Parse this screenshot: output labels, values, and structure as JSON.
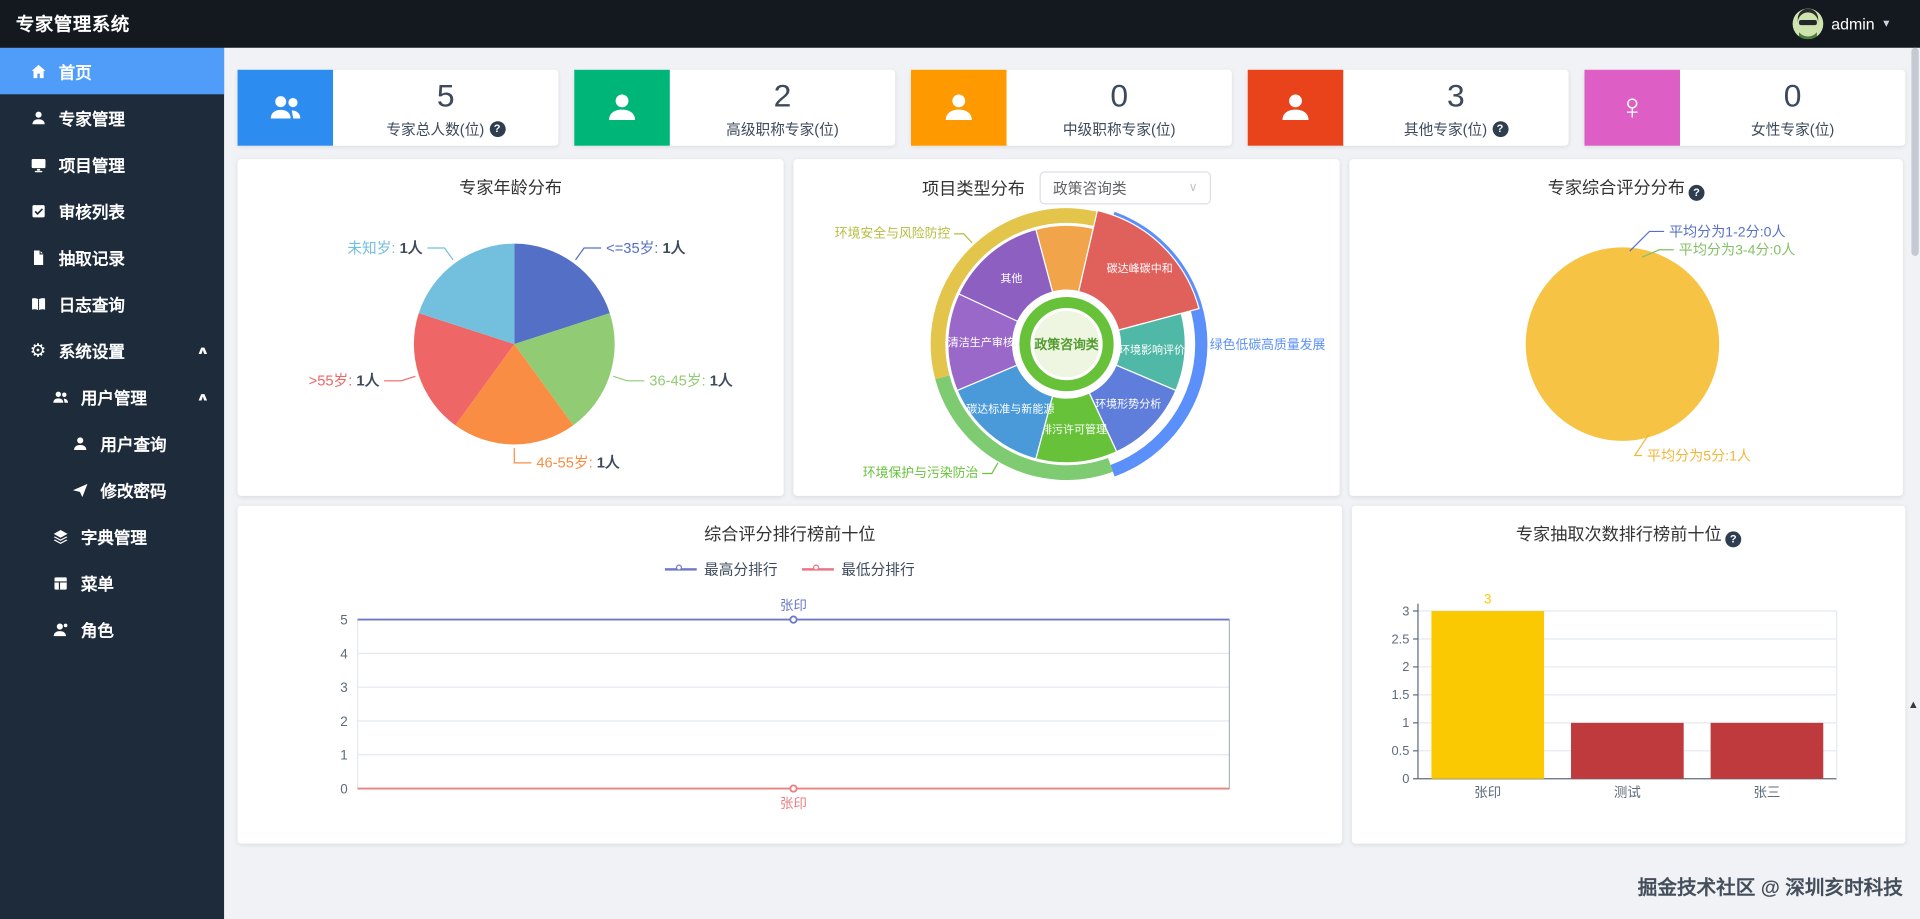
{
  "app": {
    "title": "专家管理系统",
    "user": "admin",
    "watermark": "掘金技术社区 @ 深圳亥时科技"
  },
  "icons": {
    "help": "?",
    "chevron_down": "▾",
    "chevron_up": "∧",
    "select_caret": "∨",
    "female": "♀",
    "gear": "⚙",
    "scroll_up": "▲"
  },
  "sidebar": [
    {
      "label": "首页"
    },
    {
      "label": "专家管理"
    },
    {
      "label": "项目管理"
    },
    {
      "label": "审核列表"
    },
    {
      "label": "抽取记录"
    },
    {
      "label": "日志查询"
    },
    {
      "label": "系统设置"
    },
    {
      "label": "用户管理"
    },
    {
      "label": "用户查询"
    },
    {
      "label": "修改密码"
    },
    {
      "label": "字典管理"
    },
    {
      "label": "菜单"
    },
    {
      "label": "角色"
    }
  ],
  "stats": [
    {
      "value": "5",
      "label": "专家总人数(位)",
      "color": "#2d8cf0",
      "help": true
    },
    {
      "value": "2",
      "label": "高级职称专家(位)",
      "color": "#00b578",
      "help": false
    },
    {
      "value": "0",
      "label": "中级职称专家(位)",
      "color": "#ff9900",
      "help": false
    },
    {
      "value": "3",
      "label": "其他专家(位)",
      "color": "#e8431a",
      "help": true
    },
    {
      "value": "0",
      "label": "女性专家(位)",
      "color": "#dd5ec5",
      "help": false
    }
  ],
  "charts": {
    "age": {
      "title": "专家年龄分布",
      "type": "pie",
      "unit": "人",
      "slices": [
        {
          "name": "<=35岁",
          "value": 1,
          "color": "#5470c6"
        },
        {
          "name": "36-45岁",
          "value": 1,
          "color": "#91cc75"
        },
        {
          "name": "46-55岁",
          "value": 1,
          "color": "#fa8d44"
        },
        {
          "name": ">55岁",
          "value": 1,
          "color": "#ee6666"
        },
        {
          "name": "未知岁",
          "value": 1,
          "color": "#73c0de"
        }
      ]
    },
    "project": {
      "title": "项目类型分布",
      "type": "sunburst",
      "select_value": "政策咨询类",
      "center": {
        "label": "政策咨询类",
        "ring_color": "#67c23a",
        "fill": "#eef6e2",
        "text_color": "#529b2e"
      },
      "mid_start": 345,
      "mid": [
        {
          "name": "",
          "span": 28,
          "color": "#f2a44a"
        },
        {
          "name": "碳达峰碳中和",
          "span": 62,
          "color": "#e0605c",
          "big": true
        },
        {
          "name": "环境影响评价",
          "span": 38,
          "color": "#50b8a6"
        },
        {
          "name": "环境形势分析",
          "span": 42,
          "color": "#5f7ddb"
        },
        {
          "name": "排污许可管理",
          "span": 40,
          "color": "#67c23a"
        },
        {
          "name": "碳达标准与新能源",
          "span": 52,
          "color": "#4a9ad9"
        },
        {
          "name": "清洁生产审核",
          "span": 48,
          "color": "#9a68c9"
        },
        {
          "name": "其他",
          "span": 50,
          "color": "#8d5fc0"
        }
      ],
      "outer": [
        {
          "name": "环境安全与风险防控",
          "start": 255,
          "span": 125,
          "color": "#e3c54b",
          "label_color": "#b5bd3f",
          "pos": "topleft"
        },
        {
          "name": "绿色低碳高质量发展",
          "start": 20,
          "span": 140,
          "color": "#5b8ff9",
          "label_color": "#5b8ff9",
          "pos": "right"
        },
        {
          "name": "环境保护与污染防治",
          "start": 160,
          "span": 95,
          "color": "#7ecb72",
          "label_color": "#67c23a",
          "pos": "bottomleft"
        }
      ]
    },
    "score": {
      "title": "专家综合评分分布",
      "type": "pie",
      "slice_color": "#f6c344",
      "labels": [
        {
          "text": "平均分为1-2分:0人",
          "color": "#5571c7"
        },
        {
          "text": "平均分为3-4分:0人",
          "color": "#84c068"
        },
        {
          "text": "平均分为5分:1人",
          "color": "#f0b73a"
        }
      ]
    },
    "ranking": {
      "title": "综合评分排行榜前十位",
      "type": "line",
      "legend": [
        {
          "label": "最高分排行",
          "color": "#7178c8"
        },
        {
          "label": "最低分排行",
          "color": "#ea7485"
        }
      ],
      "y_ticks": [
        0,
        1,
        2,
        3,
        4,
        5
      ],
      "categories": [
        "张印"
      ],
      "series": [
        {
          "name": "最高分排行",
          "values": [
            5
          ],
          "color": "#6d78c9",
          "point_label": "张印"
        },
        {
          "name": "最低分排行",
          "values": [
            0
          ],
          "color": "#ea8080",
          "point_label": "张印"
        }
      ]
    },
    "draws": {
      "title": "专家抽取次数排行榜前十位",
      "type": "bar",
      "y_ticks": [
        0,
        0.5,
        1,
        1.5,
        2,
        2.5,
        3
      ],
      "categories": [
        "张印",
        "测试",
        "张三"
      ],
      "values": [
        3,
        1,
        1
      ],
      "bar_colors": [
        "#fbc902",
        "#bf3a3d",
        "#bf3a3d"
      ],
      "value_labels": [
        "3",
        "",
        ""
      ]
    }
  }
}
